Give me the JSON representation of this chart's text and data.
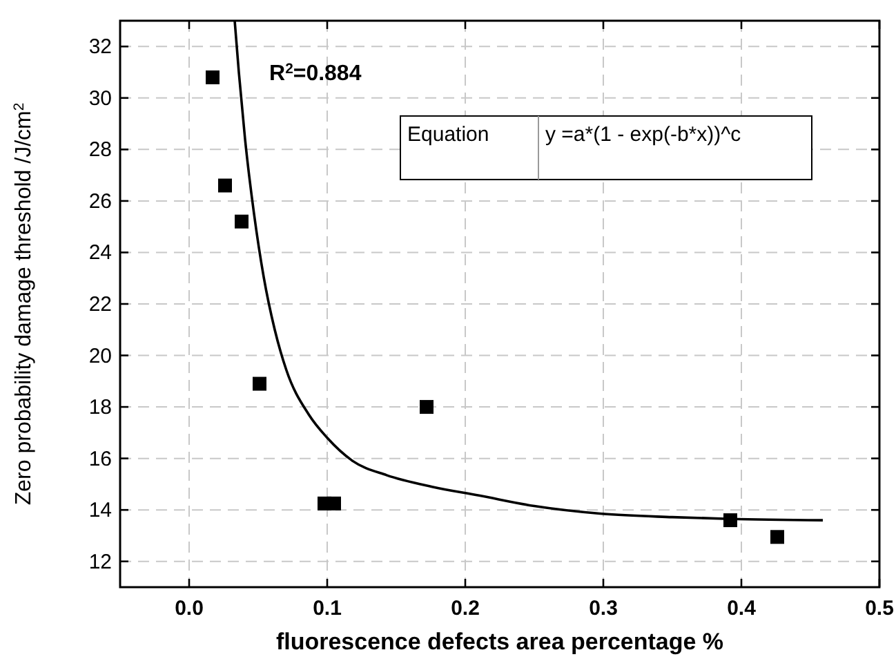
{
  "chart_data": {
    "type": "scatter",
    "xlabel": "fluorescence defects area percentage %",
    "ylabel": "Zero probability damage threshold /J/cm$^{2}$",
    "xlim": [
      -0.05,
      0.5
    ],
    "ylim": [
      11,
      33
    ],
    "xticks": [
      {
        "value": 0,
        "label": "0.0"
      },
      {
        "value": 0.1,
        "label": "0.1"
      },
      {
        "value": 0.2,
        "label": "0.2"
      },
      {
        "value": 0.3,
        "label": "0.3"
      },
      {
        "value": 0.4,
        "label": "0.4"
      },
      {
        "value": 0.5,
        "label": "0.5"
      }
    ],
    "yticks": [
      12,
      14,
      16,
      18,
      20,
      22,
      24,
      26,
      28,
      30,
      32
    ],
    "grid": true,
    "series": [
      {
        "color": "#000000",
        "marker": "square",
        "x": [
          0.017,
          0.026,
          0.038,
          0.051,
          0.098,
          0.105,
          0.172,
          0.392,
          0.426
        ],
        "values": [
          30.8,
          26.6,
          25.2,
          18.9,
          14.25,
          14.25,
          18.0,
          13.6,
          12.95
        ]
      },
      {
        "type": "line",
        "color": "#000000",
        "marker": "none",
        "x": [
          0.033,
          0.036,
          0.0405,
          0.047,
          0.054,
          0.062,
          0.0703,
          0.0867,
          0.1,
          0.1185,
          0.143,
          0.176,
          0.21,
          0.25,
          0.299,
          0.35,
          0.392,
          0.459
        ],
        "values": [
          33,
          31,
          28.4,
          25.5,
          23.05,
          21,
          19.45,
          17.7,
          16.8,
          15.9,
          15.35,
          14.9,
          14.56,
          14.15,
          13.85,
          13.72,
          13.65,
          13.6
        ]
      }
    ],
    "annotations": [
      "R$^{2}$=0.884",
      "Equation",
      "y =a*(1 - exp(-b*x))^c"
    ]
  }
}
